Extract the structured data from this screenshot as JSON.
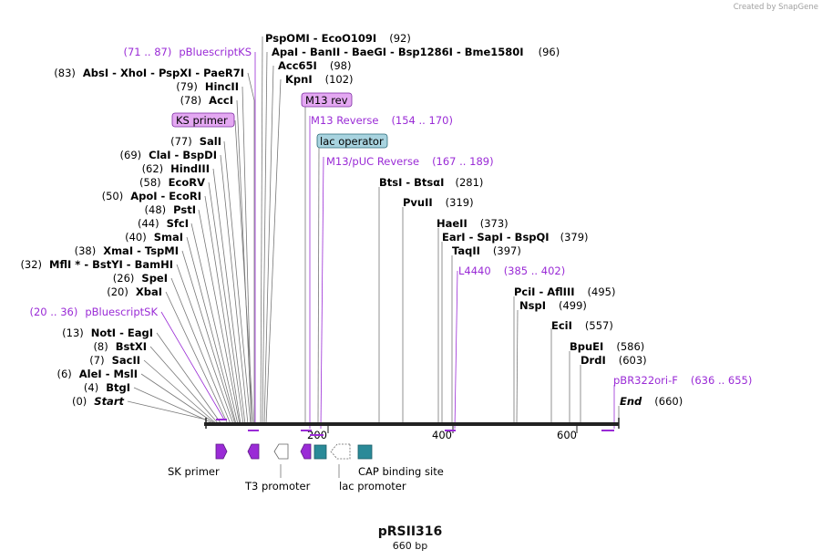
{
  "credit": "Created by SnapGene",
  "plasmid": {
    "name": "pRSII316",
    "length_label": "660 bp"
  },
  "axis_ticks": [
    "200",
    "400",
    "600"
  ],
  "left_labels": [
    {
      "id": "pbks",
      "pos": "(71 .. 87)",
      "name": "pBluescriptKS",
      "kind": "feature"
    },
    {
      "id": "absi",
      "pos": "(83)",
      "name": "AbsI  -  XhoI  -  PspXI  -  PaeR7I",
      "kind": "enzyme"
    },
    {
      "id": "hincii",
      "pos": "(79)",
      "name": "HincII",
      "kind": "enzyme"
    },
    {
      "id": "acci",
      "pos": "(78)",
      "name": "AccI",
      "kind": "enzyme"
    },
    {
      "id": "sali",
      "pos": "(77)",
      "name": "SalI",
      "kind": "enzyme"
    },
    {
      "id": "clai",
      "pos": "(69)",
      "name": "ClaI  -  BspDI",
      "kind": "enzyme"
    },
    {
      "id": "hindiii",
      "pos": "(62)",
      "name": "HindIII",
      "kind": "enzyme"
    },
    {
      "id": "ecorv",
      "pos": "(58)",
      "name": "EcoRV",
      "kind": "enzyme"
    },
    {
      "id": "apoi",
      "pos": "(50)",
      "name": "ApoI  -  EcoRI",
      "kind": "enzyme"
    },
    {
      "id": "psti",
      "pos": "(48)",
      "name": "PstI",
      "kind": "enzyme"
    },
    {
      "id": "sfci",
      "pos": "(44)",
      "name": "SfcI",
      "kind": "enzyme"
    },
    {
      "id": "smai",
      "pos": "(40)",
      "name": "SmaI",
      "kind": "enzyme"
    },
    {
      "id": "xmai",
      "pos": "(38)",
      "name": "XmaI  -  TspMI",
      "kind": "enzyme"
    },
    {
      "id": "mfli",
      "pos": "(32)",
      "name": "MflI *  -  BstYI  -  BamHI",
      "kind": "enzyme"
    },
    {
      "id": "spei",
      "pos": "(26)",
      "name": "SpeI",
      "kind": "enzyme"
    },
    {
      "id": "xbai",
      "pos": "(20)",
      "name": "XbaI",
      "kind": "enzyme"
    },
    {
      "id": "pbsk",
      "pos": "(20 .. 36)",
      "name": "pBluescriptSK",
      "kind": "feature"
    },
    {
      "id": "noti",
      "pos": "(13)",
      "name": "NotI  -  EagI",
      "kind": "enzyme"
    },
    {
      "id": "bstxi",
      "pos": "(8)",
      "name": "BstXI",
      "kind": "enzyme"
    },
    {
      "id": "sacii",
      "pos": "(7)",
      "name": "SacII",
      "kind": "enzyme"
    },
    {
      "id": "alei",
      "pos": "(6)",
      "name": "AleI  -  MslI",
      "kind": "enzyme"
    },
    {
      "id": "btgi",
      "pos": "(4)",
      "name": "BtgI",
      "kind": "enzyme"
    },
    {
      "id": "start",
      "pos": "(0)",
      "name": "Start",
      "kind": "terminus"
    }
  ],
  "right_labels": [
    {
      "id": "pspomi",
      "name": "PspOMI  -  EcoO109I",
      "pos": "(92)",
      "kind": "enzyme"
    },
    {
      "id": "apai",
      "name": "ApaI  -  BanII  -  BaeGI  -  Bsp1286I  -  Bme1580I",
      "pos": "(96)",
      "kind": "enzyme"
    },
    {
      "id": "acc65i",
      "name": "Acc65I",
      "pos": "(98)",
      "kind": "enzyme"
    },
    {
      "id": "kpni",
      "name": "KpnI",
      "pos": "(102)",
      "kind": "enzyme"
    },
    {
      "id": "m13rev",
      "name": "M13 Reverse",
      "pos": "(154 .. 170)",
      "kind": "feature"
    },
    {
      "id": "m13puc",
      "name": "M13/pUC Reverse",
      "pos": "(167 .. 189)",
      "kind": "feature"
    },
    {
      "id": "btsi",
      "name": "BtsI  -  BtsαI",
      "pos": "(281)",
      "kind": "enzyme"
    },
    {
      "id": "pvuii",
      "name": "PvuII",
      "pos": "(319)",
      "kind": "enzyme"
    },
    {
      "id": "haeii",
      "name": "HaeII",
      "pos": "(373)",
      "kind": "enzyme"
    },
    {
      "id": "eari",
      "name": "EarI  -  SapI  -  BspQI",
      "pos": "(379)",
      "kind": "enzyme"
    },
    {
      "id": "taqii",
      "name": "TaqII",
      "pos": "(397)",
      "kind": "enzyme"
    },
    {
      "id": "l4440",
      "name": "L4440",
      "pos": "(385 .. 402)",
      "kind": "feature"
    },
    {
      "id": "pcii",
      "name": "PciI  -  AflIII",
      "pos": "(495)",
      "kind": "enzyme"
    },
    {
      "id": "nspi",
      "name": "NspI",
      "pos": "(499)",
      "kind": "enzyme"
    },
    {
      "id": "ecii",
      "name": "EciI",
      "pos": "(557)",
      "kind": "enzyme"
    },
    {
      "id": "bpuei",
      "name": "BpuEI",
      "pos": "(586)",
      "kind": "enzyme"
    },
    {
      "id": "drdi",
      "name": "DrdI",
      "pos": "(603)",
      "kind": "enzyme"
    },
    {
      "id": "pbr322",
      "name": "pBR322ori-F",
      "pos": "(636 .. 655)",
      "kind": "feature"
    },
    {
      "id": "end",
      "name": "End",
      "pos": "(660)",
      "kind": "terminus"
    }
  ],
  "pill_labels": [
    {
      "id": "ks",
      "text": "KS primer",
      "fill": "#e4a8f2"
    },
    {
      "id": "m13",
      "text": "M13 rev",
      "fill": "#e4a8f2"
    },
    {
      "id": "lacop",
      "text": "lac operator",
      "fill": "#a8d3df"
    }
  ],
  "bottom_features": [
    {
      "id": "sk",
      "text": "SK primer"
    },
    {
      "id": "t3",
      "text": "T3 promoter"
    },
    {
      "id": "cap",
      "text": "CAP binding site"
    },
    {
      "id": "lacp",
      "text": "lac promoter"
    }
  ],
  "colors": {
    "feature_text": "#9a2bd6",
    "primer": "#9a2bd6",
    "cap": "#2a8a98",
    "backbone": "#222222",
    "leader": "#777777"
  }
}
